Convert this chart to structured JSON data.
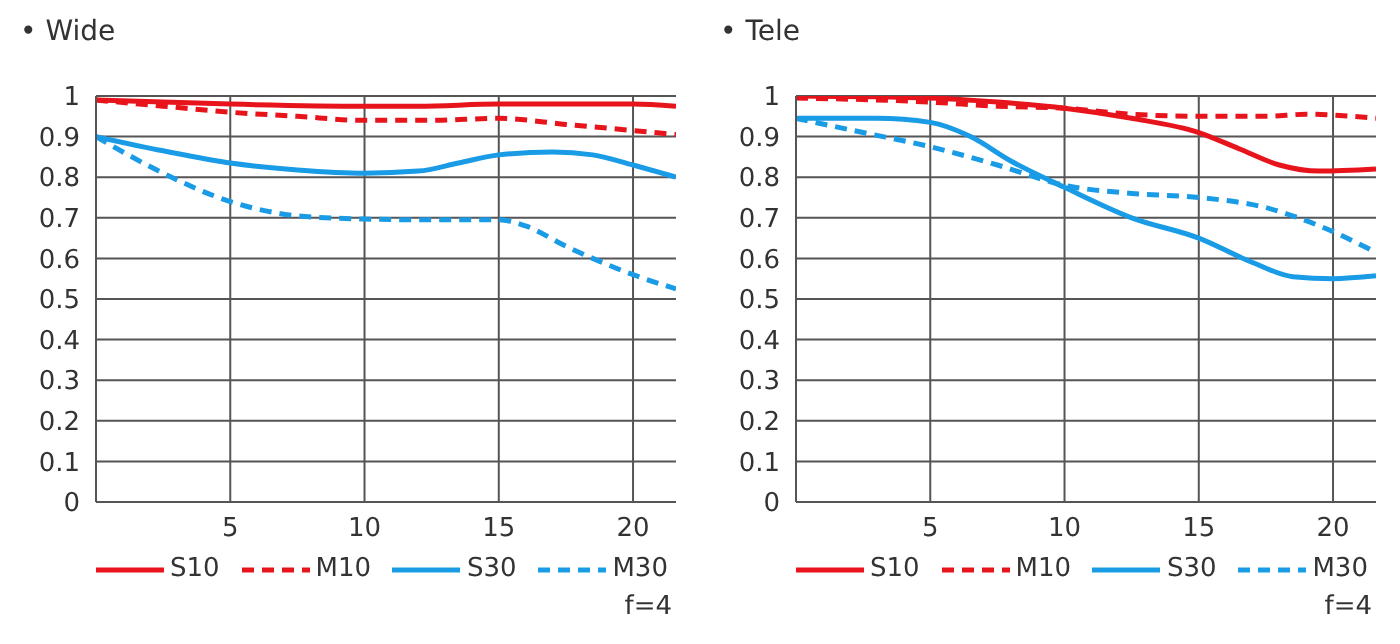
{
  "chart_data": [
    {
      "type": "line",
      "title": "• Wide",
      "xlim": [
        0,
        21.6
      ],
      "xticks": [
        5,
        10,
        15,
        20
      ],
      "ylim": [
        0,
        1
      ],
      "yticks": [
        0,
        0.1,
        0.2,
        0.3,
        0.4,
        0.5,
        0.6,
        0.7,
        0.8,
        0.9,
        1
      ],
      "grid": true,
      "legend": "bottom",
      "marker": "none",
      "annotations": [
        "f=4"
      ],
      "series": [
        {
          "name": "S10",
          "color": "#e8141c",
          "line_style": "solid",
          "x": [
            0,
            5,
            10,
            12,
            15,
            18,
            20,
            21.6
          ],
          "values": [
            0.99,
            0.98,
            0.975,
            0.975,
            0.98,
            0.98,
            0.98,
            0.975
          ]
        },
        {
          "name": "M10",
          "color": "#e8141c",
          "line_style": "dashed",
          "x": [
            0,
            2.5,
            5,
            7.5,
            10,
            12.5,
            15,
            17.5,
            20,
            21.6
          ],
          "values": [
            0.99,
            0.975,
            0.96,
            0.95,
            0.94,
            0.94,
            0.945,
            0.93,
            0.915,
            0.905
          ]
        },
        {
          "name": "S30",
          "color": "#1a9be6",
          "line_style": "solid",
          "x": [
            0,
            2.5,
            5,
            7.5,
            10,
            12,
            13.5,
            15,
            17,
            18.5,
            20,
            21.6
          ],
          "values": [
            0.9,
            0.865,
            0.835,
            0.818,
            0.81,
            0.815,
            0.835,
            0.855,
            0.862,
            0.855,
            0.83,
            0.8
          ]
        },
        {
          "name": "M30",
          "color": "#1a9be6",
          "line_style": "dashed",
          "x": [
            0,
            2.5,
            5,
            7.5,
            10,
            12.5,
            15,
            16,
            17.5,
            18.5,
            20,
            21.6
          ],
          "values": [
            0.9,
            0.81,
            0.74,
            0.705,
            0.697,
            0.695,
            0.695,
            0.68,
            0.63,
            0.6,
            0.56,
            0.525
          ]
        }
      ]
    },
    {
      "type": "line",
      "title": "• Tele",
      "xlim": [
        0,
        21.6
      ],
      "xticks": [
        5,
        10,
        15,
        20
      ],
      "ylim": [
        0,
        1
      ],
      "yticks": [
        0,
        0.1,
        0.2,
        0.3,
        0.4,
        0.5,
        0.6,
        0.7,
        0.8,
        0.9,
        1
      ],
      "grid": true,
      "legend": "bottom",
      "marker": "none",
      "annotations": [
        "f=4"
      ],
      "series": [
        {
          "name": "S10",
          "color": "#e8141c",
          "line_style": "solid",
          "x": [
            0,
            5,
            7.5,
            10,
            12.5,
            15,
            16.5,
            18,
            19.5,
            21.6
          ],
          "values": [
            1,
            0.995,
            0.985,
            0.97,
            0.945,
            0.91,
            0.87,
            0.83,
            0.815,
            0.82
          ]
        },
        {
          "name": "M10",
          "color": "#e8141c",
          "line_style": "dashed",
          "x": [
            0,
            5,
            7.5,
            10,
            12.5,
            15,
            17.5,
            19,
            21.6
          ],
          "values": [
            0.995,
            0.985,
            0.975,
            0.97,
            0.955,
            0.95,
            0.95,
            0.955,
            0.945
          ]
        },
        {
          "name": "S30",
          "color": "#1a9be6",
          "line_style": "solid",
          "x": [
            0,
            3,
            5,
            6.5,
            8,
            10,
            12.5,
            15,
            17,
            18.5,
            20,
            21.6
          ],
          "values": [
            0.945,
            0.945,
            0.935,
            0.9,
            0.84,
            0.775,
            0.7,
            0.65,
            0.59,
            0.555,
            0.55,
            0.557
          ]
        },
        {
          "name": "M30",
          "color": "#1a9be6",
          "line_style": "dashed",
          "x": [
            0,
            2.5,
            5,
            7.5,
            10,
            12.5,
            15,
            17.5,
            19.5,
            21.6
          ],
          "values": [
            0.945,
            0.91,
            0.875,
            0.83,
            0.78,
            0.76,
            0.75,
            0.725,
            0.68,
            0.615
          ]
        }
      ]
    }
  ]
}
